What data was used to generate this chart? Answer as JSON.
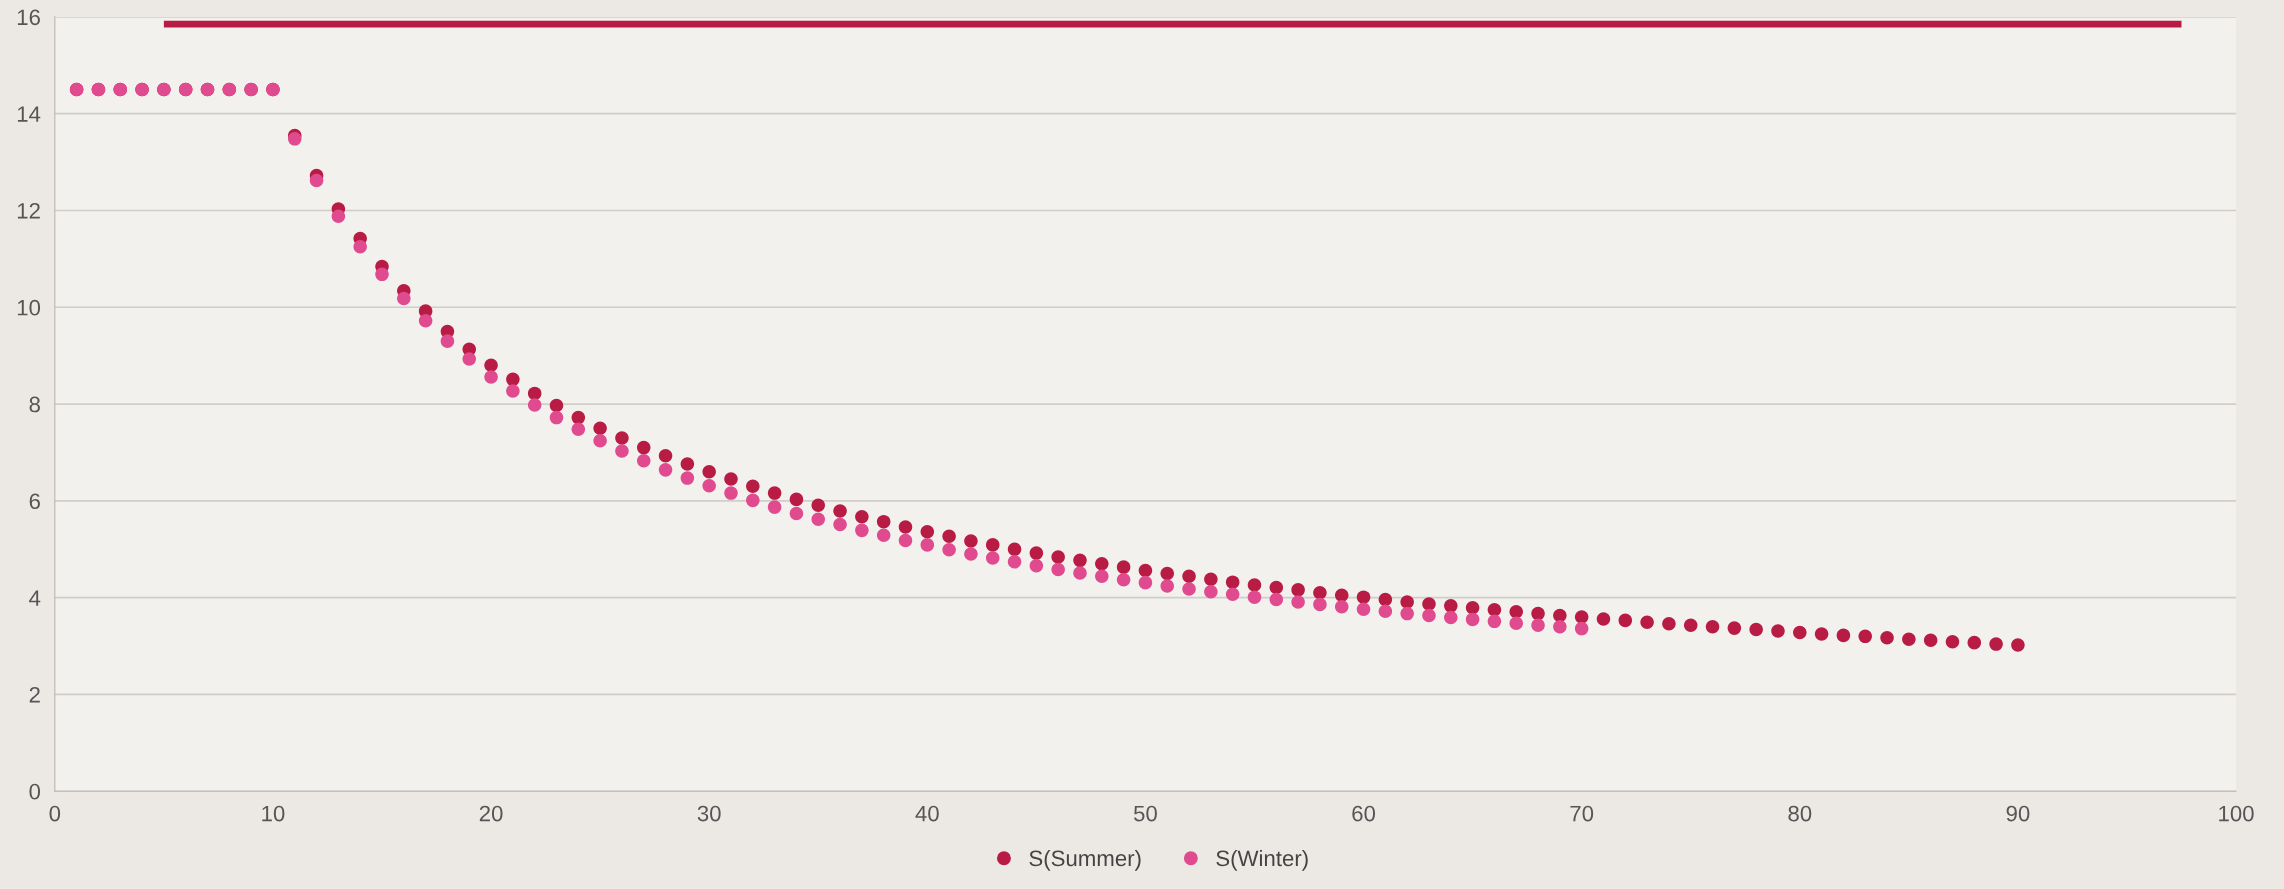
{
  "chart_data": {
    "type": "scatter",
    "xlim": [
      0,
      100
    ],
    "xticks": [
      0,
      10,
      20,
      30,
      40,
      50,
      60,
      70,
      80,
      90,
      100
    ],
    "ylim": [
      0,
      16
    ],
    "yticks": [
      0,
      2,
      4,
      6,
      8,
      10,
      12,
      14,
      16
    ],
    "grid": "y",
    "legend": "bottom",
    "marker": "circle",
    "series": [
      {
        "type": "line",
        "marker": "none",
        "color": "#b81c45",
        "x": [
          5,
          97.5
        ],
        "values": [
          15.85,
          15.85
        ]
      },
      {
        "name": "S(Summer)",
        "color": "#b81c45",
        "x": [
          1,
          2,
          3,
          4,
          5,
          6,
          7,
          8,
          9,
          10,
          11,
          12,
          13,
          14,
          15,
          16,
          17,
          18,
          19,
          20,
          21,
          22,
          23,
          24,
          25,
          26,
          27,
          28,
          29,
          30,
          31,
          32,
          33,
          34,
          35,
          36,
          37,
          38,
          39,
          40,
          41,
          42,
          43,
          44,
          45,
          46,
          47,
          48,
          49,
          50,
          51,
          52,
          53,
          54,
          55,
          56,
          57,
          58,
          59,
          60,
          61,
          62,
          63,
          64,
          65,
          66,
          67,
          68,
          69,
          70,
          71,
          72,
          73,
          74,
          75,
          76,
          77,
          78,
          79,
          80,
          81,
          82,
          83,
          84,
          85,
          86,
          87,
          88,
          89,
          90
        ],
        "values": [
          14.5,
          14.5,
          14.5,
          14.5,
          14.5,
          14.5,
          14.5,
          14.5,
          14.5,
          14.5,
          13.55,
          12.72,
          12.03,
          11.42,
          10.84,
          10.34,
          9.92,
          9.5,
          9.13,
          8.8,
          8.51,
          8.22,
          7.97,
          7.72,
          7.5,
          7.3,
          7.1,
          6.93,
          6.76,
          6.6,
          6.45,
          6.3,
          6.16,
          6.03,
          5.91,
          5.79,
          5.67,
          5.57,
          5.46,
          5.36,
          5.27,
          5.17,
          5.09,
          5.0,
          4.92,
          4.84,
          4.77,
          4.7,
          4.63,
          4.56,
          4.5,
          4.44,
          4.38,
          4.32,
          4.26,
          4.21,
          4.16,
          4.1,
          4.05,
          4.01,
          3.96,
          3.91,
          3.87,
          3.83,
          3.79,
          3.75,
          3.71,
          3.67,
          3.63,
          3.6,
          3.56,
          3.53,
          3.49,
          3.46,
          3.43,
          3.4,
          3.37,
          3.34,
          3.31,
          3.28,
          3.25,
          3.22,
          3.2,
          3.17,
          3.14,
          3.12,
          3.09,
          3.07,
          3.04,
          3.02
        ]
      },
      {
        "name": "S(Winter)",
        "color": "#e04a8f",
        "x": [
          1,
          2,
          3,
          4,
          5,
          6,
          7,
          8,
          9,
          10,
          11,
          12,
          13,
          14,
          15,
          16,
          17,
          18,
          19,
          20,
          21,
          22,
          23,
          24,
          25,
          26,
          27,
          28,
          29,
          30,
          31,
          32,
          33,
          34,
          35,
          36,
          37,
          38,
          39,
          40,
          41,
          42,
          43,
          44,
          45,
          46,
          47,
          48,
          49,
          50,
          51,
          52,
          53,
          54,
          55,
          56,
          57,
          58,
          59,
          60,
          61,
          62,
          63,
          64,
          65,
          66,
          67,
          68,
          69,
          70
        ],
        "values": [
          14.5,
          14.5,
          14.5,
          14.5,
          14.5,
          14.5,
          14.5,
          14.5,
          14.5,
          14.5,
          13.48,
          12.62,
          11.88,
          11.25,
          10.68,
          10.18,
          9.72,
          9.3,
          8.93,
          8.56,
          8.27,
          7.98,
          7.72,
          7.48,
          7.24,
          7.03,
          6.83,
          6.64,
          6.47,
          6.31,
          6.16,
          6.01,
          5.87,
          5.74,
          5.62,
          5.51,
          5.39,
          5.29,
          5.18,
          5.09,
          4.99,
          4.9,
          4.82,
          4.74,
          4.66,
          4.58,
          4.51,
          4.44,
          4.37,
          4.31,
          4.24,
          4.18,
          4.12,
          4.07,
          4.01,
          3.96,
          3.91,
          3.86,
          3.81,
          3.76,
          3.72,
          3.67,
          3.63,
          3.59,
          3.55,
          3.51,
          3.47,
          3.43,
          3.4,
          3.36
        ]
      }
    ]
  }
}
